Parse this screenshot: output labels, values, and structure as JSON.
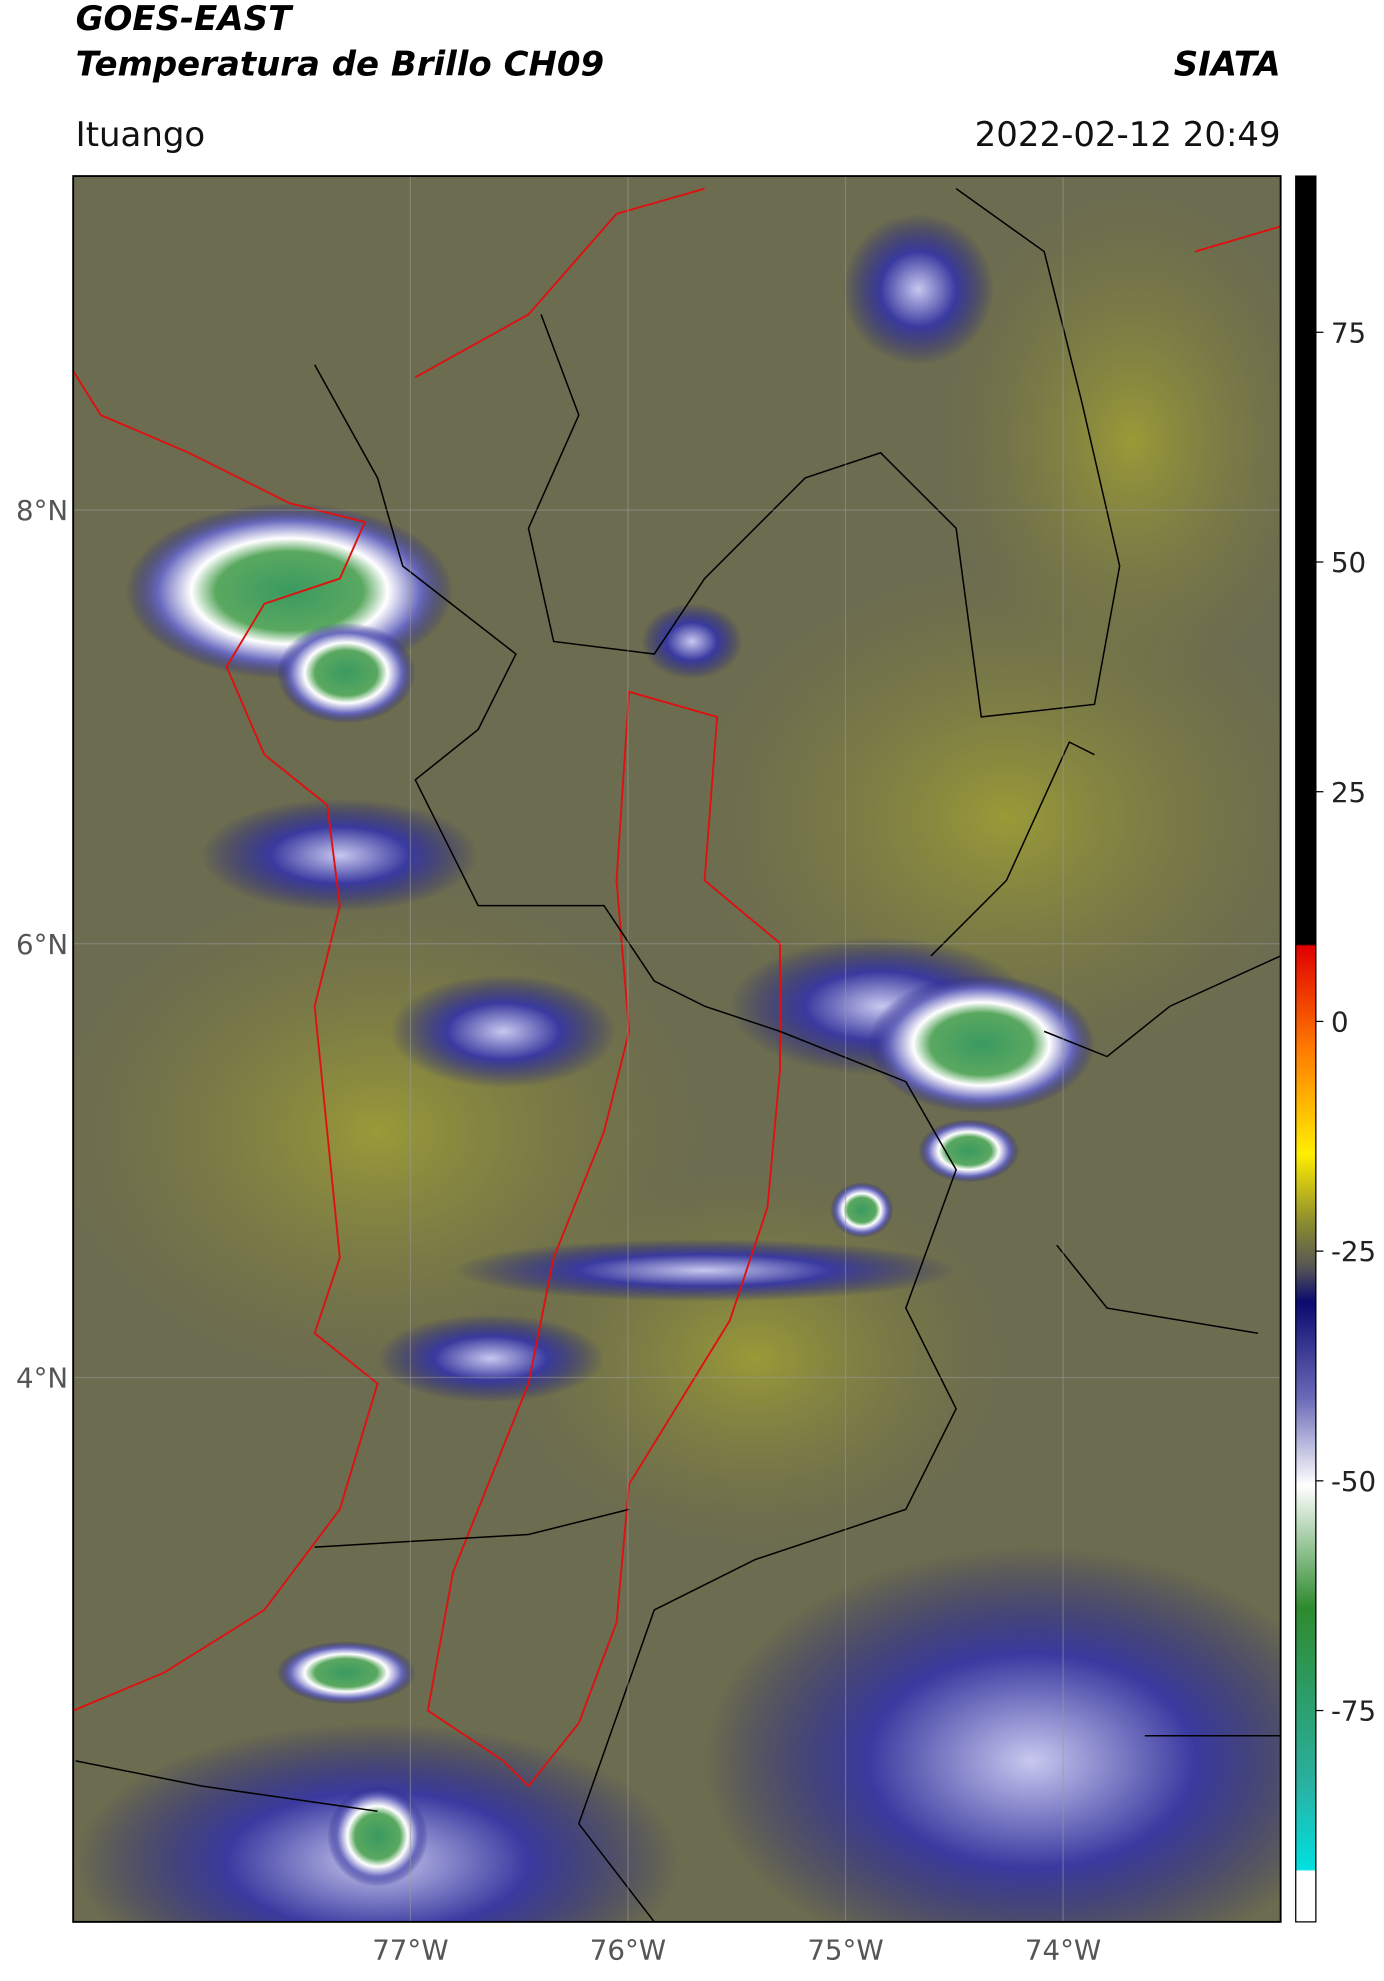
{
  "header": {
    "title": "GOES-EAST",
    "subtitle": "Temperatura de Brillo CH09",
    "source": "SIATA",
    "location": "Ituango",
    "datetime": "2022-02-12 20:49"
  },
  "map": {
    "xlim": [
      -78.55,
      -73.0
    ],
    "ylim": [
      1.49,
      9.54
    ],
    "xticks": [
      {
        "value": -77,
        "label": "77°W"
      },
      {
        "value": -76,
        "label": "76°W"
      },
      {
        "value": -75,
        "label": "75°W"
      },
      {
        "value": -74,
        "label": "74°W"
      }
    ],
    "yticks": [
      {
        "value": 4,
        "label": "4°N"
      },
      {
        "value": 6,
        "label": "6°N"
      },
      {
        "value": 8,
        "label": "8°N"
      }
    ],
    "grid": true
  },
  "colorbar": {
    "lim": [
      -98,
      92
    ],
    "ticks": [
      75,
      50,
      25,
      0,
      -25,
      -50,
      -75
    ]
  }
}
